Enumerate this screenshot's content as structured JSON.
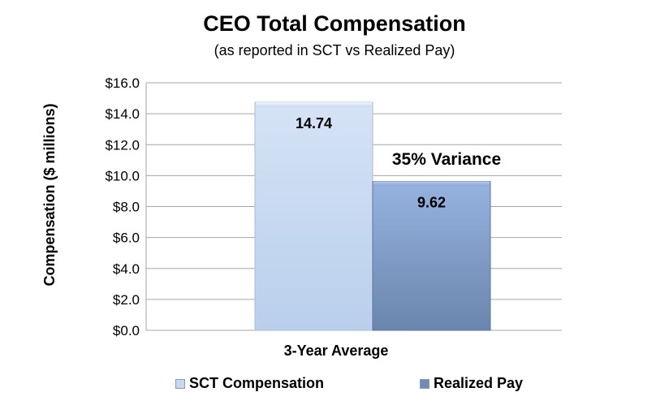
{
  "chart_data": {
    "type": "bar",
    "title": "CEO Total Compensation",
    "subtitle": "(as reported in SCT vs Realized Pay)",
    "xlabel": "",
    "ylabel": "Compensation ($ millions)",
    "categories": [
      "3-Year Average"
    ],
    "ylim": [
      0,
      16
    ],
    "yticks": [
      "$0.0",
      "$2.0",
      "$4.0",
      "$6.0",
      "$8.0",
      "$10.0",
      "$12.0",
      "$14.0",
      "$16.0"
    ],
    "grid": true,
    "legend_position": "bottom",
    "series": [
      {
        "name": "SCT Compensation",
        "values": [
          14.74
        ],
        "data_label": "14.74",
        "color": "#c6d9f1"
      },
      {
        "name": "Realized Pay",
        "values": [
          9.62
        ],
        "data_label": "9.62",
        "color": "#7f9dcd"
      }
    ],
    "annotations": [
      "35% Variance"
    ]
  }
}
